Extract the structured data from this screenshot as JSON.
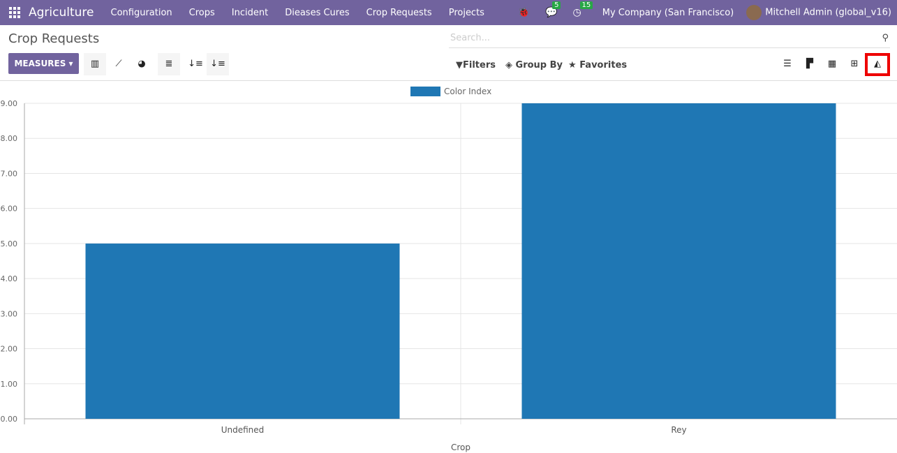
{
  "nav": {
    "brand": "Agriculture",
    "menus": [
      "Configuration",
      "Crops",
      "Incident",
      "Dieases Cures",
      "Crop Requests",
      "Projects"
    ],
    "messages_count": "5",
    "activities_count": "15",
    "company": "My Company (San Francisco)",
    "user": "Mitchell Admin (global_v16)"
  },
  "page": {
    "title": "Crop Requests",
    "search_placeholder": "Search...",
    "measures_label": "MEASURES",
    "filters": "Filters",
    "group_by": "Group By",
    "favorites": "Favorites"
  },
  "colors": {
    "nav": "#71639e",
    "bar": "#1f77b4",
    "highlight": "#ee0000"
  },
  "chart_data": {
    "type": "bar",
    "categories": [
      "Undefined",
      "Rey"
    ],
    "series": [
      {
        "name": "Color Index",
        "values": [
          5,
          9
        ],
        "color": "#1f77b4"
      }
    ],
    "xlabel": "Crop",
    "ylabel": "",
    "ylim": [
      0,
      9
    ],
    "yticks": [
      "0.00",
      "1.00",
      "2.00",
      "3.00",
      "4.00",
      "5.00",
      "6.00",
      "7.00",
      "8.00",
      "9.00"
    ],
    "legend": "top-center",
    "grid": true
  }
}
